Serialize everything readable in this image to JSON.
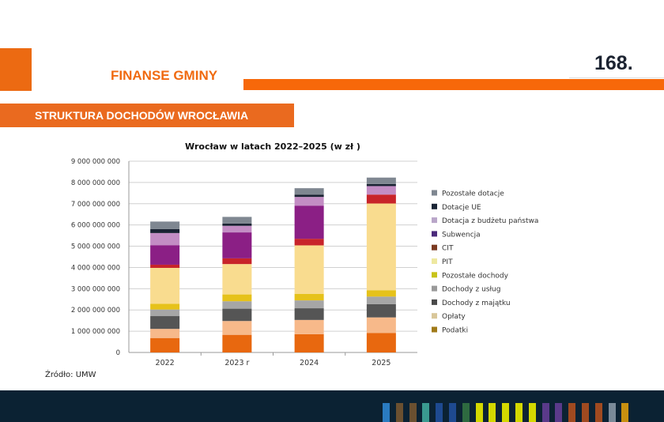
{
  "header": {
    "section": "FINANSE GMINY",
    "page_number": "168.",
    "subtitle": "STRUKTURA DOCHODÓW WROCŁAWIA",
    "source": "Źródło: UMW"
  },
  "chart_data": {
    "type": "bar",
    "stacked": true,
    "title": "Wrocław w latach 2022–2025 (w zł )",
    "xlabel": "",
    "ylabel": "",
    "ylim": [
      0,
      9000000000
    ],
    "grid": true,
    "legend": "right",
    "yticks": [
      "0",
      "1 000 000 000",
      "2 000 000 000",
      "3 000 000 000",
      "4 000 000 000",
      "5 000 000 000",
      "6 000 000 000",
      "7 000 000 000",
      "8 000 000 000",
      "9 000 000 000"
    ],
    "categories": [
      "2022",
      "2023 r",
      "2024",
      "2025"
    ],
    "series": [
      {
        "name": "Podatki",
        "color": "#e8680f",
        "legend_color": "#a07a18",
        "values": [
          680000000,
          830000000,
          860000000,
          920000000
        ]
      },
      {
        "name": "Opłaty",
        "color": "#f7b98a",
        "legend_color": "#d9c79a",
        "values": [
          430000000,
          650000000,
          670000000,
          730000000
        ]
      },
      {
        "name": "Dochody z majątku",
        "color": "#555555",
        "legend_color": "#4a4a4a",
        "values": [
          600000000,
          580000000,
          550000000,
          620000000
        ]
      },
      {
        "name": "Dochody z usług",
        "color": "#a6a6a6",
        "legend_color": "#9a9a9a",
        "values": [
          310000000,
          350000000,
          370000000,
          360000000
        ]
      },
      {
        "name": "Pozostałe dochody",
        "color": "#e6c21a",
        "legend_color": "#c8c31a",
        "values": [
          270000000,
          320000000,
          310000000,
          300000000
        ]
      },
      {
        "name": "PIT",
        "color": "#f9dc8f",
        "legend_color": "#eee8a0",
        "values": [
          1690000000,
          1430000000,
          2280000000,
          4080000000
        ]
      },
      {
        "name": "CIT",
        "color": "#c8242a",
        "legend_color": "#7b3a22",
        "values": [
          150000000,
          270000000,
          310000000,
          420000000
        ]
      },
      {
        "name": "Subwencja",
        "color": "#8b1f85",
        "legend_color": "#4b2a7b",
        "values": [
          920000000,
          1220000000,
          1560000000,
          0
        ]
      },
      {
        "name": "Dotacja z budżetu państwa",
        "color": "#c38dc4",
        "legend_color": "#b9a6c9",
        "values": [
          570000000,
          310000000,
          410000000,
          400000000
        ]
      },
      {
        "name": "Dotacje UE",
        "color": "#1a2333",
        "legend_color": "#1a2535",
        "values": [
          190000000,
          110000000,
          110000000,
          100000000
        ]
      },
      {
        "name": "Pozostałe dotacje",
        "color": "#7f8791",
        "legend_color": "#7f8791",
        "values": [
          350000000,
          310000000,
          300000000,
          300000000
        ]
      }
    ]
  },
  "footer": {
    "stripe_colors": [
      "#2a7bc0",
      "#6b5030",
      "#6b5030",
      "#3a9a90",
      "#1e4a90",
      "#1e4a90",
      "#2e6a40",
      "#d4d800",
      "#d4d800",
      "#d4d800",
      "#d4d800",
      "#d4d800",
      "#5a3a8a",
      "#5a3a8a",
      "#a04a20",
      "#a04a20",
      "#a04a20",
      "#7a8a98",
      "#c89010"
    ]
  }
}
